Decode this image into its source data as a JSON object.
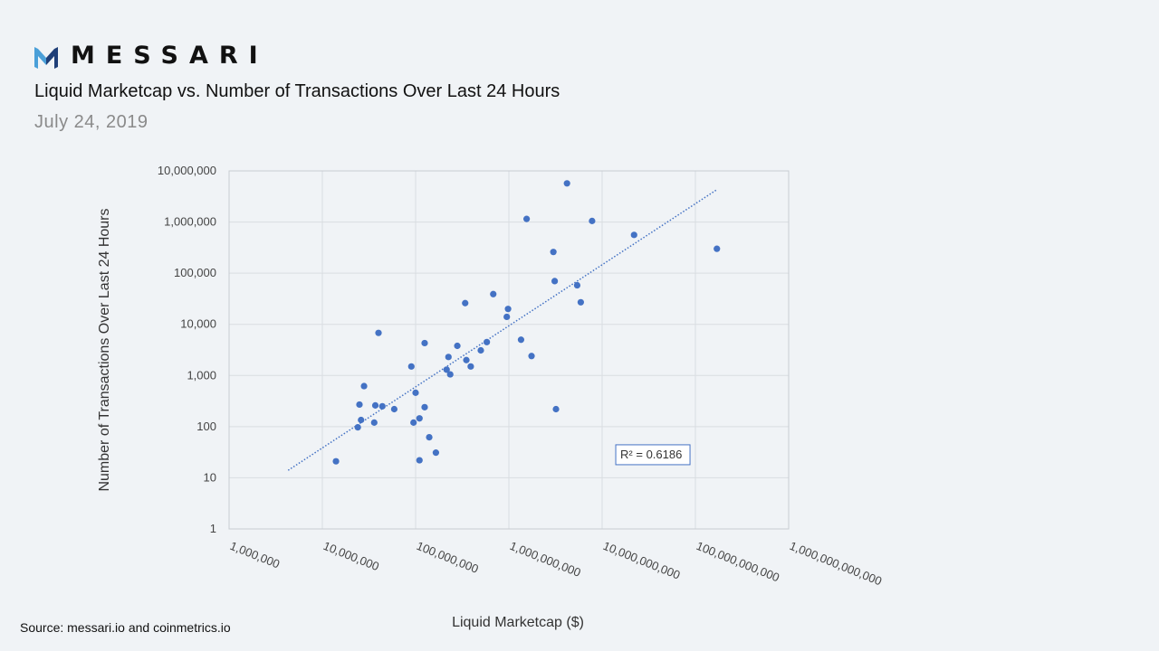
{
  "brand": {
    "name": "MESSARI",
    "logo_icon": "messari-logo-icon",
    "colors": {
      "logo_dark": "#1f3f78",
      "logo_light": "#4a9fd8"
    }
  },
  "header": {
    "title": "Liquid Marketcap vs. Number of Transactions Over Last 24 Hours",
    "subtitle": "July 24, 2019"
  },
  "footer": {
    "source": "Source: messari.io and coinmetrics.io"
  },
  "chart_data": {
    "type": "scatter",
    "xlabel": "Liquid Marketcap ($)",
    "ylabel": "Number of Transactions Over Last 24 Hours",
    "x_scale": "log",
    "y_scale": "log",
    "xlim": [
      1000000,
      1000000000000
    ],
    "ylim": [
      1,
      10000000
    ],
    "x_ticks": [
      "1,000,000",
      "10,000,000",
      "100,000,000",
      "1,000,000,000",
      "10,000,000,000",
      "100,000,000,000",
      "1,000,000,000,000"
    ],
    "y_ticks": [
      "10,000,000",
      "1,000,000",
      "100,000",
      "10,000",
      "1,000",
      "100",
      "10",
      "1"
    ],
    "grid": true,
    "marker_color": "#4472c4",
    "trendline": {
      "style": "dotted",
      "color": "#4472c4",
      "points": [
        [
          4300000,
          14
        ],
        [
          170000000000,
          4300000
        ]
      ],
      "r2_label": "R² = 0.6186"
    },
    "points": [
      {
        "x": 14000000,
        "y": 21
      },
      {
        "x": 24000000,
        "y": 97
      },
      {
        "x": 25000000,
        "y": 270
      },
      {
        "x": 26000000,
        "y": 135
      },
      {
        "x": 28000000,
        "y": 620
      },
      {
        "x": 36000000,
        "y": 120
      },
      {
        "x": 37000000,
        "y": 260
      },
      {
        "x": 40000000,
        "y": 6800
      },
      {
        "x": 44000000,
        "y": 250
      },
      {
        "x": 59000000,
        "y": 220
      },
      {
        "x": 90000000,
        "y": 1500
      },
      {
        "x": 95000000,
        "y": 120
      },
      {
        "x": 100000000,
        "y": 460
      },
      {
        "x": 110000000,
        "y": 22
      },
      {
        "x": 110000000,
        "y": 145
      },
      {
        "x": 125000000,
        "y": 4300
      },
      {
        "x": 125000000,
        "y": 240
      },
      {
        "x": 140000000,
        "y": 62
      },
      {
        "x": 165000000,
        "y": 31
      },
      {
        "x": 215000000,
        "y": 1300
      },
      {
        "x": 225000000,
        "y": 2300
      },
      {
        "x": 235000000,
        "y": 1050
      },
      {
        "x": 280000000,
        "y": 3800
      },
      {
        "x": 340000000,
        "y": 26000
      },
      {
        "x": 350000000,
        "y": 2000
      },
      {
        "x": 390000000,
        "y": 1500
      },
      {
        "x": 500000000,
        "y": 3100
      },
      {
        "x": 580000000,
        "y": 4500
      },
      {
        "x": 680000000,
        "y": 39000
      },
      {
        "x": 950000000,
        "y": 14000
      },
      {
        "x": 980000000,
        "y": 20000
      },
      {
        "x": 1350000000,
        "y": 5000
      },
      {
        "x": 1550000000,
        "y": 1150000
      },
      {
        "x": 1750000000,
        "y": 2400
      },
      {
        "x": 3000000000,
        "y": 260000
      },
      {
        "x": 3100000000,
        "y": 70000
      },
      {
        "x": 3200000000,
        "y": 220
      },
      {
        "x": 4200000000,
        "y": 5700000
      },
      {
        "x": 5400000000,
        "y": 58000
      },
      {
        "x": 5900000000,
        "y": 27000
      },
      {
        "x": 7800000000,
        "y": 1050000
      },
      {
        "x": 22000000000,
        "y": 560000
      },
      {
        "x": 170000000000,
        "y": 300000
      }
    ]
  }
}
